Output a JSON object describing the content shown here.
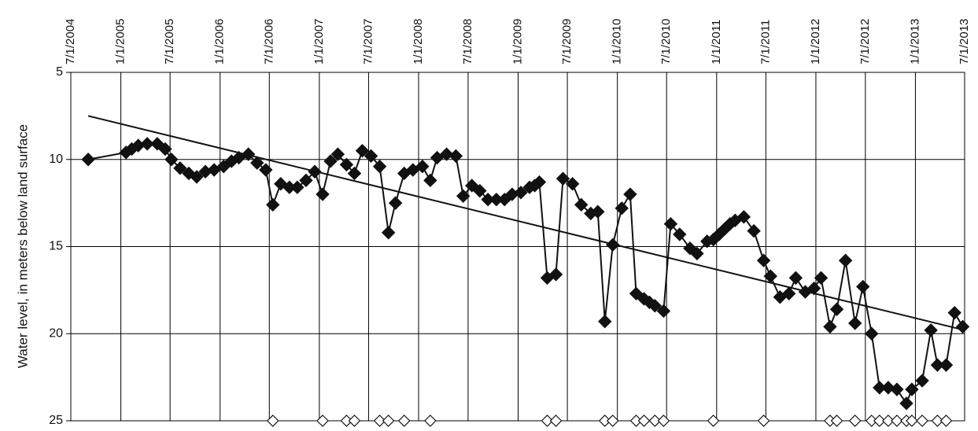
{
  "chart_data": {
    "type": "line",
    "y_label": "Water level, in meters below land surface",
    "xlim": [
      "7/1/2004",
      "7/1/2013"
    ],
    "xticks": [
      "7/1/2004",
      "1/1/2005",
      "7/1/2005",
      "1/1/2006",
      "7/1/2006",
      "1/1/2007",
      "7/1/2007",
      "1/1/2008",
      "7/1/2008",
      "1/1/2009",
      "7/1/2009",
      "1/1/2010",
      "7/1/2010",
      "1/1/2011",
      "7/1/2011",
      "1/1/2012",
      "7/1/2012",
      "1/1/2013",
      "7/1/2013"
    ],
    "ylim": [
      5,
      25
    ],
    "invert_y": true,
    "yticks": [
      5,
      10,
      15,
      20,
      25
    ],
    "grid": true,
    "series": [
      {
        "color": "#111111",
        "marker": "filled-diamond",
        "line": true,
        "x": [
          "9/3/2004",
          "1/20/2005",
          "2/10/2005",
          "3/6/2005",
          "4/8/2005",
          "5/15/2005",
          "6/13/2005",
          "7/6/2005",
          "8/7/2005",
          "9/8/2005",
          "10/7/2005",
          "11/8/2005",
          "12/10/2005",
          "1/14/2006",
          "2/12/2006",
          "3/11/2006",
          "4/15/2006",
          "5/17/2006",
          "6/18/2006",
          "7/14/2006",
          "8/12/2006",
          "9/13/2006",
          "10/12/2006",
          "11/13/2006",
          "12/15/2006",
          "1/13/2007",
          "2/11/2007",
          "3/10/2007",
          "4/11/2007",
          "5/10/2007",
          "6/8/2007",
          "7/10/2007",
          "8/11/2007",
          "9/12/2007",
          "10/8/2007",
          "11/9/2007",
          "12/11/2007",
          "1/15/2008",
          "2/13/2008",
          "3/9/2008",
          "4/13/2008",
          "5/17/2008",
          "6/13/2008",
          "7/15/2008",
          "8/13/2008",
          "9/12/2008",
          "10/13/2008",
          "11/12/2008",
          "12/10/2008",
          "1/11/2009",
          "2/12/2009",
          "3/3/2009",
          "3/20/2009",
          "4/18/2009",
          "5/20/2009",
          "6/15/2009",
          "7/20/2009",
          "8/21/2009",
          "9/25/2009",
          "10/21/2009",
          "11/16/2009",
          "12/15/2009",
          "1/17/2010",
          "2/17/2010",
          "3/11/2010",
          "4/9/2010",
          "4/29/2010",
          "5/19/2010",
          "6/20/2010",
          "7/16/2010",
          "8/18/2010",
          "9/25/2010",
          "10/21/2010",
          "11/27/2010",
          "12/20/2010",
          "1/10/2011",
          "1/30/2011",
          "2/19/2011",
          "3/10/2011",
          "4/11/2011",
          "5/18/2011",
          "6/23/2011",
          "7/18/2011",
          "8/22/2011",
          "9/24/2011",
          "10/19/2011",
          "11/23/2011",
          "12/25/2011",
          "1/20/2012",
          "2/22/2012",
          "3/18/2012",
          "4/19/2012",
          "5/24/2012",
          "6/22/2012",
          "7/24/2012",
          "8/22/2012",
          "9/23/2012",
          "10/25/2012",
          "11/29/2012",
          "12/19/2012",
          "1/26/2013",
          "2/27/2013",
          "3/23/2013",
          "4/24/2013",
          "5/25/2013",
          "6/24/2013"
        ],
        "values": [
          10.0,
          9.6,
          9.4,
          9.2,
          9.1,
          9.1,
          9.4,
          10.0,
          10.5,
          10.8,
          11.0,
          10.7,
          10.6,
          10.4,
          10.1,
          9.9,
          9.7,
          10.2,
          10.6,
          12.6,
          11.4,
          11.6,
          11.6,
          11.2,
          10.7,
          12.0,
          10.1,
          9.7,
          10.3,
          10.8,
          9.5,
          9.8,
          10.4,
          14.2,
          12.5,
          10.8,
          10.6,
          10.4,
          11.2,
          9.9,
          9.7,
          9.8,
          12.1,
          11.5,
          11.8,
          12.3,
          12.3,
          12.3,
          12.0,
          11.9,
          11.6,
          11.5,
          11.3,
          16.8,
          16.6,
          11.1,
          11.4,
          12.6,
          13.1,
          13.0,
          19.3,
          14.9,
          12.8,
          12.0,
          17.7,
          18.0,
          18.2,
          18.4,
          18.7,
          13.7,
          14.3,
          15.1,
          15.4,
          14.7,
          14.6,
          14.3,
          14.0,
          13.7,
          13.5,
          13.3,
          14.1,
          15.8,
          16.7,
          17.9,
          17.7,
          16.8,
          17.6,
          17.4,
          16.8,
          19.6,
          18.6,
          15.8,
          19.4,
          17.3,
          20.0,
          23.1,
          23.1,
          23.2,
          24.0,
          23.2,
          22.7,
          19.8,
          21.8,
          21.8,
          18.8,
          19.6
        ]
      },
      {
        "color": "#111111",
        "marker": "open-diamond",
        "line": false,
        "x": [
          "7/14/2006",
          "1/13/2007",
          "4/11/2007",
          "5/10/2007",
          "8/11/2007",
          "9/12/2007",
          "11/9/2007",
          "2/13/2008",
          "4/18/2009",
          "5/20/2009",
          "11/16/2009",
          "12/15/2009",
          "3/11/2010",
          "4/9/2010",
          "5/19/2010",
          "6/20/2010",
          "12/20/2010",
          "6/23/2011",
          "2/22/2012",
          "3/18/2012",
          "5/24/2012",
          "7/24/2012",
          "8/22/2012",
          "9/23/2012",
          "10/25/2012",
          "11/29/2012",
          "12/19/2012",
          "1/26/2013",
          "3/23/2013",
          "4/24/2013"
        ],
        "values": [
          25,
          25,
          25,
          25,
          25,
          25,
          25,
          25,
          25,
          25,
          25,
          25,
          25,
          25,
          25,
          25,
          25,
          25,
          25,
          25,
          25,
          25,
          25,
          25,
          25,
          25,
          25,
          25,
          25,
          25
        ]
      },
      {
        "color": "#111111",
        "marker": "none",
        "line": true,
        "x": [
          "9/3/2004",
          "7/1/2013"
        ],
        "values": [
          7.5,
          19.8
        ]
      }
    ]
  }
}
